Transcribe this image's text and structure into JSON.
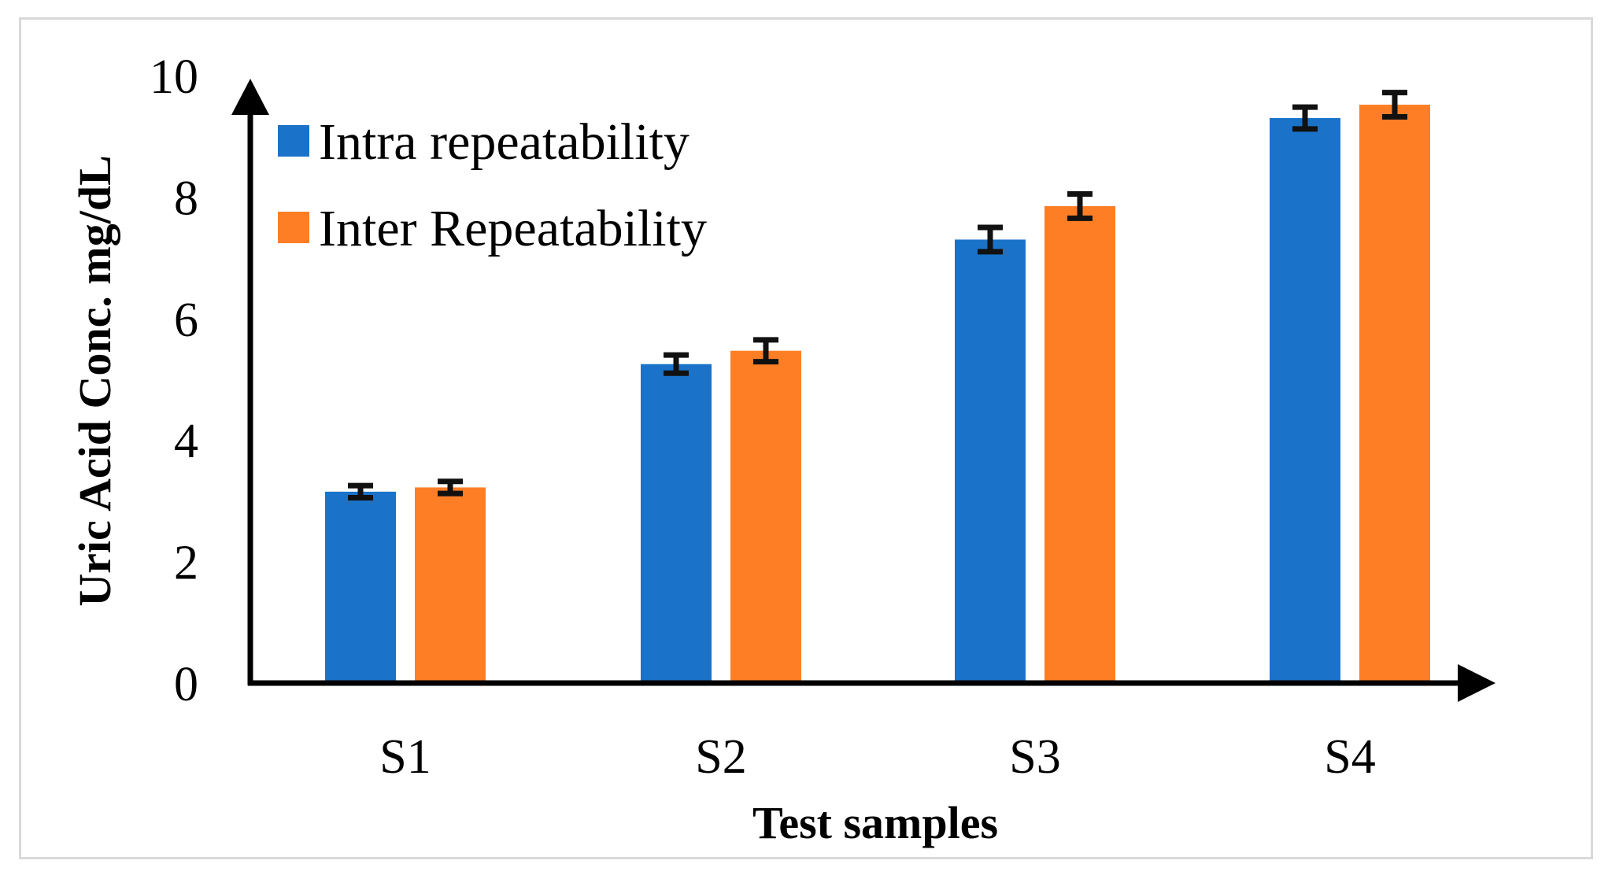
{
  "chart_data": {
    "type": "bar",
    "title": "",
    "xlabel": "Test samples",
    "ylabel": "Uric Acid Conc. mg/dL",
    "ylim": [
      0,
      10
    ],
    "yticks": [
      0,
      2,
      4,
      6,
      8,
      10
    ],
    "categories": [
      "S1",
      "S2",
      "S3",
      "S4"
    ],
    "series": [
      {
        "name": "Intra repeatability",
        "color": "#1a73c9",
        "values": [
          3.15,
          5.25,
          7.3,
          9.3
        ],
        "errors": [
          0.1,
          0.15,
          0.2,
          0.18
        ]
      },
      {
        "name": "Inter Repeatability",
        "color": "#fd7e25",
        "values": [
          3.22,
          5.47,
          7.85,
          9.52
        ],
        "errors": [
          0.1,
          0.18,
          0.2,
          0.2
        ]
      }
    ],
    "legend_position": "top-left",
    "grid": false,
    "error_bars": true
  }
}
